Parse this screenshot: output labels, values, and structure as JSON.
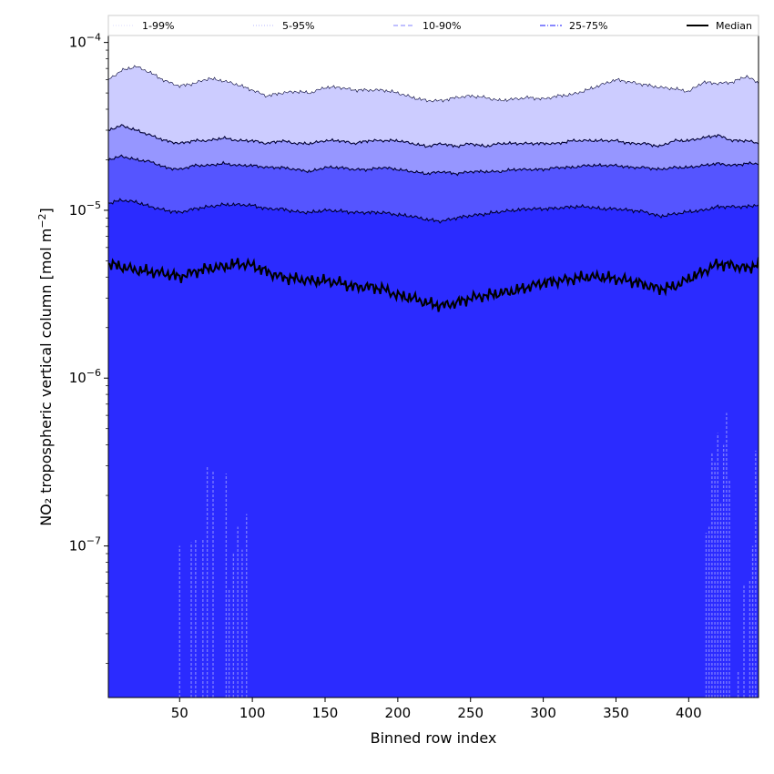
{
  "chart_data": {
    "type": "area",
    "title": "",
    "xlabel": "Binned row index",
    "ylabel_main": "NO₂ tropospheric vertical column [mol m",
    "ylabel_sup": "−2",
    "ylabel_close": "]",
    "xlim": [
      1,
      448
    ],
    "ylim": [
      1.25e-08,
      0.00011
    ],
    "yscale": "log",
    "grid": false,
    "legend_position": "top",
    "x_ticks": [
      50,
      100,
      150,
      200,
      250,
      300,
      350,
      400
    ],
    "x_tick_labels": [
      "50",
      "100",
      "150",
      "200",
      "250",
      "300",
      "350",
      "400"
    ],
    "y_ticks": [
      1e-07,
      1e-06,
      1e-05,
      0.0001
    ],
    "y_tick_labels": [
      {
        "base": "10",
        "exp": "−7"
      },
      {
        "base": "10",
        "exp": "−6"
      },
      {
        "base": "10",
        "exp": "−5"
      },
      {
        "base": "10",
        "exp": "−4"
      }
    ],
    "colors": {
      "band_1_99": "#2b2bff",
      "band_5_95": "#5555ff",
      "band_10_90": "#9696ff",
      "band_25_75": "#ccccff",
      "median": "#000000",
      "lower_spikes": "#7777ff"
    },
    "legend": [
      {
        "label": "1-99%",
        "style": "dotted",
        "color": "#d0d0ff",
        "width": 0.8
      },
      {
        "label": "5-95%",
        "style": "dotted",
        "color": "#a0a0ff",
        "width": 0.8
      },
      {
        "label": "10-90%",
        "style": "dashed",
        "color": "#8080ff",
        "width": 1.0
      },
      {
        "label": "25-75%",
        "style": "dashdot",
        "color": "#4040ff",
        "width": 1.2
      },
      {
        "label": "Median",
        "style": "solid",
        "color": "#000000",
        "width": 2.0
      }
    ],
    "x": [
      1,
      10,
      20,
      30,
      40,
      50,
      60,
      70,
      80,
      90,
      100,
      110,
      120,
      130,
      140,
      150,
      160,
      170,
      180,
      190,
      200,
      210,
      220,
      230,
      240,
      250,
      260,
      270,
      280,
      290,
      300,
      310,
      320,
      330,
      340,
      350,
      360,
      370,
      380,
      390,
      400,
      410,
      420,
      430,
      440,
      448
    ],
    "series": [
      {
        "name": "99th",
        "values": [
          6e-05,
          6.8e-05,
          7.2e-05,
          6.6e-05,
          5.9e-05,
          5.5e-05,
          5.7e-05,
          6.1e-05,
          5.9e-05,
          5.6e-05,
          5.2e-05,
          4.8e-05,
          5e-05,
          5.1e-05,
          5e-05,
          5.4e-05,
          5.4e-05,
          5.2e-05,
          5.2e-05,
          5.2e-05,
          5e-05,
          4.7e-05,
          4.5e-05,
          4.5e-05,
          4.7e-05,
          4.8e-05,
          4.7e-05,
          4.5e-05,
          4.6e-05,
          4.7e-05,
          4.6e-05,
          4.8e-05,
          4.9e-05,
          5.2e-05,
          5.6e-05,
          6e-05,
          5.8e-05,
          5.6e-05,
          5.4e-05,
          5.3e-05,
          5.1e-05,
          5.8e-05,
          5.7e-05,
          5.8e-05,
          6.3e-05,
          5.7e-05
        ]
      },
      {
        "name": "95th",
        "values": [
          3e-05,
          3.2e-05,
          3e-05,
          2.8e-05,
          2.6e-05,
          2.5e-05,
          2.6e-05,
          2.6e-05,
          2.7e-05,
          2.6e-05,
          2.6e-05,
          2.5e-05,
          2.6e-05,
          2.5e-05,
          2.5e-05,
          2.6e-05,
          2.6e-05,
          2.5e-05,
          2.6e-05,
          2.6e-05,
          2.6e-05,
          2.5e-05,
          2.4e-05,
          2.5e-05,
          2.4e-05,
          2.5e-05,
          2.4e-05,
          2.5e-05,
          2.5e-05,
          2.5e-05,
          2.5e-05,
          2.5e-05,
          2.6e-05,
          2.6e-05,
          2.6e-05,
          2.6e-05,
          2.5e-05,
          2.5e-05,
          2.4e-05,
          2.6e-05,
          2.6e-05,
          2.7e-05,
          2.8e-05,
          2.6e-05,
          2.6e-05,
          2.5e-05
        ]
      },
      {
        "name": "90th",
        "values": [
          2e-05,
          2.1e-05,
          2e-05,
          1.95e-05,
          1.8e-05,
          1.75e-05,
          1.85e-05,
          1.85e-05,
          1.9e-05,
          1.85e-05,
          1.85e-05,
          1.8e-05,
          1.8e-05,
          1.75e-05,
          1.7e-05,
          1.8e-05,
          1.8e-05,
          1.75e-05,
          1.75e-05,
          1.8e-05,
          1.75e-05,
          1.7e-05,
          1.65e-05,
          1.7e-05,
          1.65e-05,
          1.7e-05,
          1.7e-05,
          1.7e-05,
          1.75e-05,
          1.75e-05,
          1.75e-05,
          1.8e-05,
          1.8e-05,
          1.85e-05,
          1.85e-05,
          1.85e-05,
          1.8e-05,
          1.8e-05,
          1.75e-05,
          1.8e-05,
          1.8e-05,
          1.85e-05,
          1.9e-05,
          1.85e-05,
          1.9e-05,
          1.9e-05
        ]
      },
      {
        "name": "75th",
        "values": [
          1.1e-05,
          1.15e-05,
          1.12e-05,
          1.05e-05,
          1e-05,
          9.7e-06,
          1.02e-05,
          1.05e-05,
          1.08e-05,
          1.08e-05,
          1.07e-05,
          1.02e-05,
          1.02e-05,
          9.8e-06,
          9.7e-06,
          1e-05,
          9.9e-06,
          9.7e-06,
          9.7e-06,
          9.7e-06,
          9.4e-06,
          9.2e-06,
          8.8e-06,
          8.6e-06,
          9e-06,
          9.3e-06,
          9.5e-06,
          9.8e-06,
          1e-05,
          1.02e-05,
          1.02e-05,
          1.03e-05,
          1.05e-05,
          1.05e-05,
          1.02e-05,
          1.02e-05,
          1e-05,
          9.8e-06,
          9.2e-06,
          9.5e-06,
          9.8e-06,
          1e-05,
          1.05e-05,
          1.05e-05,
          1.05e-05,
          1.08e-05
        ]
      },
      {
        "name": "Median",
        "values": [
          4.8e-06,
          4.6e-06,
          4.4e-06,
          4.3e-06,
          4.2e-06,
          4e-06,
          4.3e-06,
          4.5e-06,
          4.6e-06,
          4.8e-06,
          4.7e-06,
          4.3e-06,
          4e-06,
          3.9e-06,
          3.8e-06,
          3.8e-06,
          3.7e-06,
          3.5e-06,
          3.5e-06,
          3.4e-06,
          3.1e-06,
          3e-06,
          2.8e-06,
          2.7e-06,
          2.8e-06,
          3e-06,
          3.1e-06,
          3.2e-06,
          3.3e-06,
          3.5e-06,
          3.7e-06,
          3.8e-06,
          3.9e-06,
          4e-06,
          4e-06,
          3.9e-06,
          3.8e-06,
          3.6e-06,
          3.4e-06,
          3.5e-06,
          3.9e-06,
          4.3e-06,
          4.8e-06,
          4.7e-06,
          4.5e-06,
          4.8e-06
        ]
      }
    ],
    "lower_spikes": [
      {
        "x": 50,
        "y": 1e-07
      },
      {
        "x": 58,
        "y": 1.05e-07
      },
      {
        "x": 61,
        "y": 1.1e-07
      },
      {
        "x": 66,
        "y": 1.1e-07
      },
      {
        "x": 69,
        "y": 3e-07
      },
      {
        "x": 73,
        "y": 2.8e-07
      },
      {
        "x": 82,
        "y": 2.7e-07
      },
      {
        "x": 84,
        "y": 5.5e-08
      },
      {
        "x": 87,
        "y": 9e-08
      },
      {
        "x": 90,
        "y": 1.3e-07
      },
      {
        "x": 93,
        "y": 9.5e-08
      },
      {
        "x": 96,
        "y": 1.55e-07
      },
      {
        "x": 412,
        "y": 1.2e-07
      },
      {
        "x": 414,
        "y": 1.3e-07
      },
      {
        "x": 416,
        "y": 3.6e-07
      },
      {
        "x": 418,
        "y": 3.2e-07
      },
      {
        "x": 420,
        "y": 4.7e-07
      },
      {
        "x": 422,
        "y": 1.8e-07
      },
      {
        "x": 424,
        "y": 4e-07
      },
      {
        "x": 426,
        "y": 6.2e-07
      },
      {
        "x": 428,
        "y": 2.5e-07
      },
      {
        "x": 434,
        "y": 1.8e-08
      },
      {
        "x": 438,
        "y": 5.8e-08
      },
      {
        "x": 442,
        "y": 6.2e-08
      },
      {
        "x": 444,
        "y": 1e-07
      },
      {
        "x": 446,
        "y": 3.7e-07
      }
    ]
  }
}
